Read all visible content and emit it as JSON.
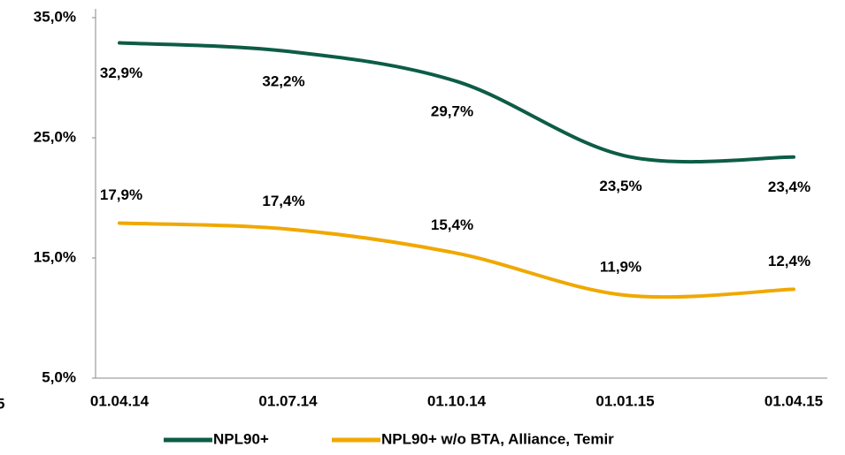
{
  "chart_data": {
    "type": "line",
    "categories": [
      "01.04.14",
      "01.07.14",
      "01.10.14",
      "01.01.15",
      "01.04.15"
    ],
    "series": [
      {
        "name": "NPL90+",
        "color": "#0d5c46",
        "values": [
          32.9,
          32.2,
          29.7,
          23.5,
          23.4
        ],
        "value_labels": [
          "32,9%",
          "32,2%",
          "29,7%",
          "23,5%",
          "23,4%"
        ]
      },
      {
        "name": "NPL90+ w/o BTA, Alliance, Temir",
        "color": "#f0a800",
        "values": [
          17.9,
          17.4,
          15.4,
          11.9,
          12.4
        ],
        "value_labels": [
          "17,9%",
          "17,4%",
          "15,4%",
          "11,9%",
          "12,4%"
        ]
      }
    ],
    "ylim": [
      5,
      35
    ],
    "yticks": [
      {
        "value": 5,
        "label": "5,0%"
      },
      {
        "value": 15,
        "label": "15,0%"
      },
      {
        "value": 25,
        "label": "25,0%"
      },
      {
        "value": 35,
        "label": "35,0%"
      }
    ],
    "grid": false,
    "legend": "bottom",
    "annotations": [
      "5"
    ]
  }
}
